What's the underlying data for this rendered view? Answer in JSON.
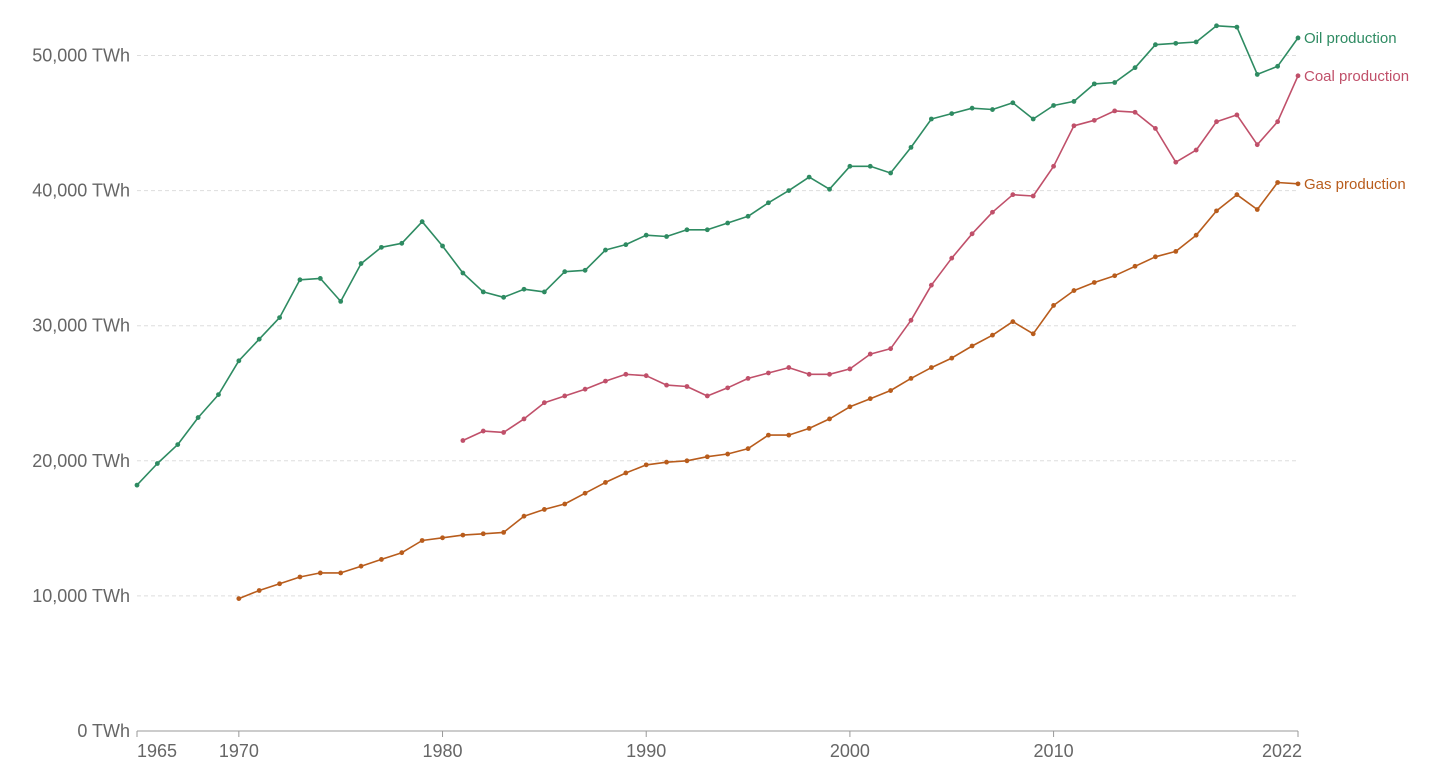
{
  "chart_data": {
    "type": "line",
    "title": "",
    "xlabel": "",
    "ylabel": "",
    "unit": "TWh",
    "xlim": [
      1965,
      2022
    ],
    "ylim": [
      0,
      53000
    ],
    "grid": true,
    "legend": "inline-right",
    "y_ticks": [
      {
        "value": 0,
        "label": "0 TWh"
      },
      {
        "value": 10000,
        "label": "10,000 TWh"
      },
      {
        "value": 20000,
        "label": "20,000 TWh"
      },
      {
        "value": 30000,
        "label": "30,000 TWh"
      },
      {
        "value": 40000,
        "label": "40,000 TWh"
      },
      {
        "value": 50000,
        "label": "50,000 TWh"
      }
    ],
    "x_ticks": [
      {
        "value": 1965,
        "label": "1965"
      },
      {
        "value": 1970,
        "label": "1970"
      },
      {
        "value": 1980,
        "label": "1980"
      },
      {
        "value": 1990,
        "label": "1990"
      },
      {
        "value": 2000,
        "label": "2000"
      },
      {
        "value": 2010,
        "label": "2010"
      },
      {
        "value": 2022,
        "label": "2022"
      }
    ],
    "series": [
      {
        "name": "Oil production",
        "color": "#2e8b62",
        "start_year": 1965,
        "values": [
          18200,
          19800,
          21200,
          23200,
          24900,
          27400,
          29000,
          30600,
          33400,
          33500,
          31800,
          34600,
          35800,
          36100,
          37700,
          35900,
          33900,
          32500,
          32100,
          32700,
          32500,
          34000,
          34100,
          35600,
          36000,
          36700,
          36600,
          37100,
          37100,
          37600,
          38100,
          39100,
          40000,
          41000,
          40100,
          41800,
          41800,
          41300,
          43200,
          45300,
          45700,
          46100,
          46000,
          46500,
          45300,
          46300,
          46600,
          47900,
          48000,
          49100,
          50800,
          50900,
          51000,
          52200,
          52100,
          48600,
          49200,
          51300
        ]
      },
      {
        "name": "Coal production",
        "color": "#c0506a",
        "start_year": 1981,
        "values": [
          21500,
          22200,
          22100,
          23100,
          24300,
          24800,
          25300,
          25900,
          26400,
          26300,
          25600,
          25500,
          24800,
          25400,
          26100,
          26500,
          26900,
          26400,
          26400,
          26800,
          27900,
          28300,
          30400,
          33000,
          35000,
          36800,
          38400,
          39700,
          39600,
          41800,
          44800,
          45200,
          45900,
          45800,
          44600,
          42100,
          43000,
          45100,
          45600,
          43400,
          45100,
          48500
        ]
      },
      {
        "name": "Gas production",
        "color": "#b85c1c",
        "start_year": 1970,
        "values": [
          9800,
          10400,
          10900,
          11400,
          11700,
          11700,
          12200,
          12700,
          13200,
          14100,
          14300,
          14500,
          14600,
          14700,
          15900,
          16400,
          16800,
          17600,
          18400,
          19100,
          19700,
          19900,
          20000,
          20300,
          20500,
          20900,
          21900,
          21900,
          22400,
          23100,
          24000,
          24600,
          25200,
          26100,
          26900,
          27600,
          28500,
          29300,
          30300,
          29400,
          31500,
          32600,
          33200,
          33700,
          34400,
          35100,
          35500,
          36700,
          38500,
          39700,
          38600,
          40600,
          40500
        ]
      }
    ]
  }
}
